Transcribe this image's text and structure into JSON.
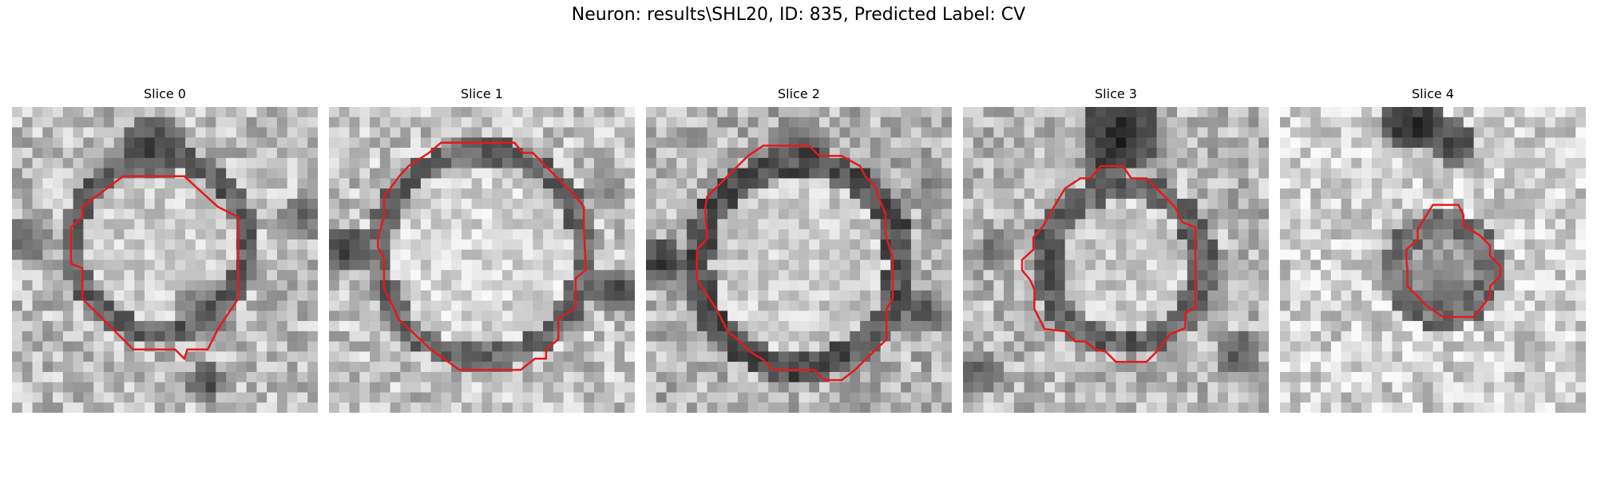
{
  "figure": {
    "title": "Neuron: results\\SHL20, ID: 835, Predicted Label: CV"
  },
  "panels": [
    {
      "title": "Slice 0"
    },
    {
      "title": "Slice 1"
    },
    {
      "title": "Slice 2"
    },
    {
      "title": "Slice 3"
    },
    {
      "title": "Slice 4"
    }
  ],
  "colors": {
    "contour": "#e41a1c",
    "colormap": "grayscale"
  }
}
